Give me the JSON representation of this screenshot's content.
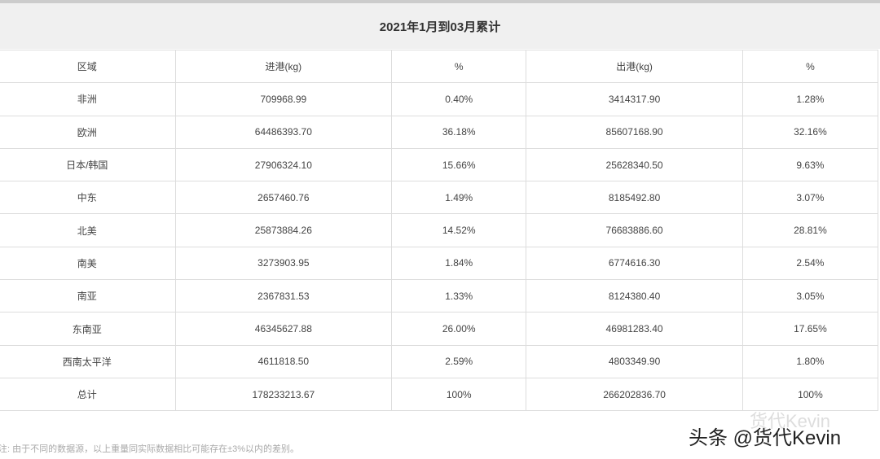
{
  "title": "2021年1月到03月累计",
  "table": {
    "header": [
      "区域",
      "进港(kg)",
      "%",
      "出港(kg)",
      "%"
    ],
    "rows": [
      [
        "非洲",
        "709968.99",
        "0.40%",
        "3414317.90",
        "1.28%"
      ],
      [
        "欧洲",
        "64486393.70",
        "36.18%",
        "85607168.90",
        "32.16%"
      ],
      [
        "日本/韩国",
        "27906324.10",
        "15.66%",
        "25628340.50",
        "9.63%"
      ],
      [
        "中东",
        "2657460.76",
        "1.49%",
        "8185492.80",
        "3.07%"
      ],
      [
        "北美",
        "25873884.26",
        "14.52%",
        "76683886.60",
        "28.81%"
      ],
      [
        "南美",
        "3273903.95",
        "1.84%",
        "6774616.30",
        "2.54%"
      ],
      [
        "南亚",
        "2367831.53",
        "1.33%",
        "8124380.40",
        "3.05%"
      ],
      [
        "东南亚",
        "46345627.88",
        "26.00%",
        "46981283.40",
        "17.65%"
      ],
      [
        "西南太平洋",
        "4611818.50",
        "2.59%",
        "4803349.90",
        "1.80%"
      ],
      [
        "总计",
        "178233213.67",
        "100%",
        "266202836.70",
        "100%"
      ]
    ]
  },
  "note": "注: 由于不同的数据源，以上重量同实际数据相比可能存在±3%以内的差别。",
  "watermark": "货代Kevin",
  "credit": "头条 @货代Kevin"
}
